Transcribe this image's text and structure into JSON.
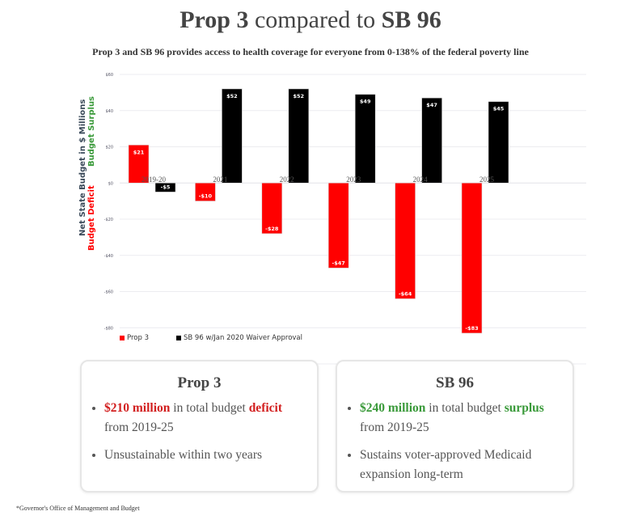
{
  "header": {
    "title_part1": "Prop 3",
    "title_part2": " compared to ",
    "title_part3": "SB 96",
    "subtitle": "Prop 3 and SB 96 provides access to health coverage for everyone from 0-138% of the federal poverty line"
  },
  "chart_data": {
    "type": "bar",
    "title": "Prop 3 compared to SB 96",
    "categories": [
      "2019-20",
      "2021",
      "2022",
      "2023",
      "2024",
      "2025"
    ],
    "series": [
      {
        "name": "Prop 3",
        "color": "#ff0000",
        "values": [
          21,
          -10,
          -28,
          -47,
          -64,
          -83
        ],
        "labels": [
          "$21",
          "-$10",
          "-$28",
          "-$47",
          "-$64",
          "-$83"
        ]
      },
      {
        "name": "SB 96 w/Jan 2020 Waiver Approval",
        "color": "#000000",
        "values": [
          -5,
          52,
          52,
          49,
          47,
          45
        ],
        "labels": [
          "-$5",
          "$52",
          "$52",
          "$49",
          "$47",
          "$45"
        ]
      }
    ],
    "ylabel": "Net State Budget in $ Millions",
    "ylabel_positive": "Budget Surplus",
    "ylabel_negative": "Budget Deficit",
    "ylim": [
      -100,
      60
    ],
    "yticks": [
      60,
      40,
      20,
      0,
      -20,
      -40,
      -60,
      -80,
      -100
    ],
    "ytick_labels": [
      "$60",
      "$40",
      "$20",
      "$0",
      "-$20",
      "-$40",
      "-$60",
      "-$80",
      "-$100"
    ],
    "grid": true,
    "legend_position": "bottom-left"
  },
  "colors": {
    "deficit": "#d21f1f",
    "surplus": "#3a9a3a",
    "axis_title": "#3b4a5a"
  },
  "cards": [
    {
      "title": "Prop 3",
      "bullets": [
        {
          "highlight": "$210 million",
          "text": " in total budget ",
          "highlight2": "deficit",
          "text2": " from 2019-25"
        },
        {
          "text": "Unsustainable within two years"
        }
      ]
    },
    {
      "title": "SB 96",
      "bullets": [
        {
          "highlight": "$240 million",
          "text": " in total budget ",
          "highlight2": "surplus",
          "text2": " from 2019-25"
        },
        {
          "text": "Sustains voter-approved Medicaid expansion long-term"
        }
      ]
    }
  ],
  "footnote": "*Governor's Office of Management and Budget"
}
